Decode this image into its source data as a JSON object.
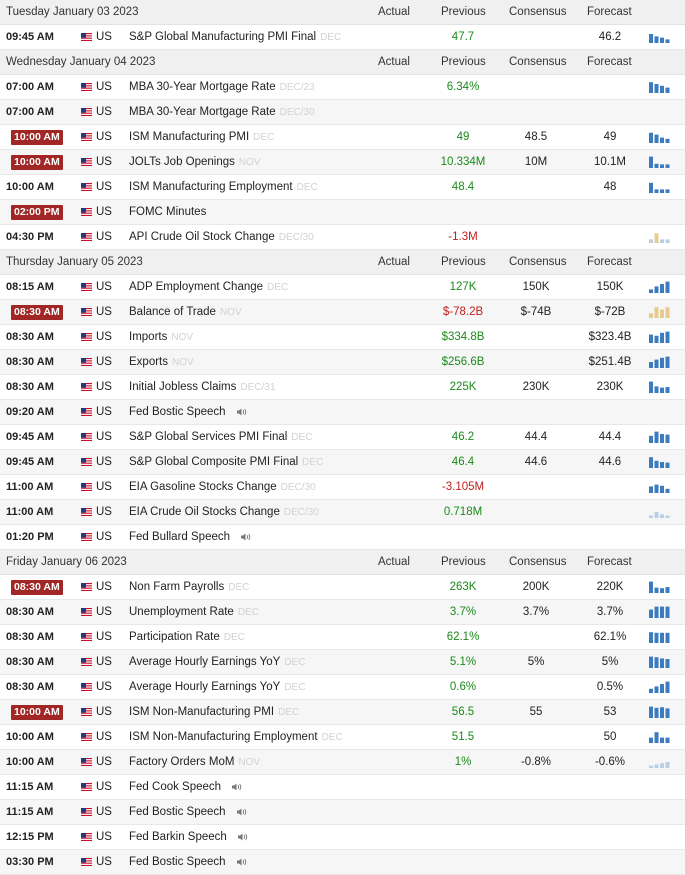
{
  "columns": {
    "actual": "Actual",
    "previous": "Previous",
    "consensus": "Consensus",
    "forecast": "Forecast"
  },
  "colors": {
    "highlight": "#a12727",
    "positive": "#1a8a1a",
    "negative": "#c21d1d",
    "spark_blue": "#3d7bbf",
    "spark_tan": "#e8c98e",
    "spark_light": "#b9cfe6"
  },
  "days": [
    {
      "label": "Tuesday January 03 2023",
      "events": [
        {
          "time": "09:45 AM",
          "highlight": false,
          "country": "US",
          "name": "S&P Global Manufacturing PMI Final",
          "period": "DEC",
          "speaker": false,
          "actual": "",
          "previous": "47.7",
          "previous_color": "pos",
          "consensus": "",
          "forecast": "46.2",
          "spark": "blue",
          "spark_values": [
            0.75,
            0.55,
            0.45,
            0.3
          ]
        }
      ]
    },
    {
      "label": "Wednesday January 04 2023",
      "events": [
        {
          "time": "07:00 AM",
          "highlight": false,
          "country": "US",
          "name": "MBA 30-Year Mortgage Rate",
          "period": "DEC/23",
          "speaker": false,
          "actual": "",
          "previous": "6.34%",
          "previous_color": "pos",
          "consensus": "",
          "forecast": "",
          "spark": "blue",
          "spark_values": [
            0.9,
            0.75,
            0.6,
            0.45
          ]
        },
        {
          "time": "07:00 AM",
          "highlight": false,
          "country": "US",
          "name": "MBA 30-Year Mortgage Rate",
          "period": "DEC/30",
          "speaker": false,
          "actual": "",
          "previous": "",
          "previous_color": "pos",
          "consensus": "",
          "forecast": "",
          "spark": "none",
          "spark_values": []
        },
        {
          "time": "10:00 AM",
          "highlight": true,
          "country": "US",
          "name": "ISM Manufacturing PMI",
          "period": "DEC",
          "speaker": false,
          "actual": "",
          "previous": "49",
          "previous_color": "pos",
          "consensus": "48.5",
          "forecast": "49",
          "spark": "blue",
          "spark_values": [
            0.85,
            0.7,
            0.45,
            0.35
          ]
        },
        {
          "time": "10:00 AM",
          "highlight": true,
          "country": "US",
          "name": "JOLTs Job Openings",
          "period": "NOV",
          "speaker": false,
          "actual": "",
          "previous": "10.334M",
          "previous_color": "pos",
          "consensus": "10M",
          "forecast": "10.1M",
          "spark": "blue",
          "spark_values": [
            0.95,
            0.35,
            0.3,
            0.3
          ]
        },
        {
          "time": "10:00 AM",
          "highlight": false,
          "country": "US",
          "name": "ISM Manufacturing Employment",
          "period": "DEC",
          "speaker": false,
          "actual": "",
          "previous": "48.4",
          "previous_color": "pos",
          "consensus": "",
          "forecast": "48",
          "spark": "blue",
          "spark_values": [
            0.85,
            0.3,
            0.3,
            0.3
          ]
        },
        {
          "time": "02:00 PM",
          "highlight": true,
          "country": "US",
          "name": "FOMC Minutes",
          "period": "",
          "speaker": false,
          "actual": "",
          "previous": "",
          "previous_color": "pos",
          "consensus": "",
          "forecast": "",
          "spark": "none",
          "spark_values": []
        },
        {
          "time": "04:30 PM",
          "highlight": false,
          "country": "US",
          "name": "API Crude Oil Stock Change",
          "period": "DEC/30",
          "speaker": false,
          "actual": "",
          "previous": "-1.3M",
          "previous_color": "neg",
          "consensus": "",
          "forecast": "",
          "spark": "mixed",
          "spark_values": [
            0.3,
            0.8,
            0.3,
            0.3
          ]
        }
      ]
    },
    {
      "label": "Thursday January 05 2023",
      "events": [
        {
          "time": "08:15 AM",
          "highlight": false,
          "country": "US",
          "name": "ADP Employment Change",
          "period": "DEC",
          "speaker": false,
          "actual": "",
          "previous": "127K",
          "previous_color": "pos",
          "consensus": "150K",
          "forecast": "150K",
          "spark": "blue",
          "spark_values": [
            0.3,
            0.55,
            0.75,
            0.95
          ]
        },
        {
          "time": "08:30 AM",
          "highlight": true,
          "country": "US",
          "name": "Balance of Trade",
          "period": "NOV",
          "speaker": false,
          "actual": "",
          "previous": "$-78.2B",
          "previous_color": "neg",
          "consensus": "$-74B",
          "forecast": "$-72B",
          "spark": "tan",
          "spark_values": [
            0.4,
            0.9,
            0.7,
            0.9
          ]
        },
        {
          "time": "08:30 AM",
          "highlight": false,
          "country": "US",
          "name": "Imports",
          "period": "NOV",
          "speaker": false,
          "actual": "",
          "previous": "$334.8B",
          "previous_color": "pos",
          "consensus": "",
          "forecast": "$323.4B",
          "spark": "blue",
          "spark_values": [
            0.7,
            0.6,
            0.85,
            0.95
          ]
        },
        {
          "time": "08:30 AM",
          "highlight": false,
          "country": "US",
          "name": "Exports",
          "period": "NOV",
          "speaker": false,
          "actual": "",
          "previous": "$256.6B",
          "previous_color": "pos",
          "consensus": "",
          "forecast": "$251.4B",
          "spark": "blue",
          "spark_values": [
            0.5,
            0.7,
            0.85,
            0.95
          ]
        },
        {
          "time": "08:30 AM",
          "highlight": false,
          "country": "US",
          "name": "Initial Jobless Claims",
          "period": "DEC/31",
          "speaker": false,
          "actual": "",
          "previous": "225K",
          "previous_color": "pos",
          "consensus": "230K",
          "forecast": "230K",
          "spark": "blue",
          "spark_values": [
            0.95,
            0.55,
            0.45,
            0.5
          ]
        },
        {
          "time": "09:20 AM",
          "highlight": false,
          "country": "US",
          "name": "Fed Bostic Speech",
          "period": "",
          "speaker": true,
          "actual": "",
          "previous": "",
          "previous_color": "pos",
          "consensus": "",
          "forecast": "",
          "spark": "none",
          "spark_values": []
        },
        {
          "time": "09:45 AM",
          "highlight": false,
          "country": "US",
          "name": "S&P Global Services PMI Final",
          "period": "DEC",
          "speaker": false,
          "actual": "",
          "previous": "46.2",
          "previous_color": "pos",
          "consensus": "44.4",
          "forecast": "44.4",
          "spark": "blue",
          "spark_values": [
            0.6,
            0.95,
            0.75,
            0.7
          ]
        },
        {
          "time": "09:45 AM",
          "highlight": false,
          "country": "US",
          "name": "S&P Global Composite PMI Final",
          "period": "DEC",
          "speaker": false,
          "actual": "",
          "previous": "46.4",
          "previous_color": "pos",
          "consensus": "44.6",
          "forecast": "44.6",
          "spark": "blue",
          "spark_values": [
            0.9,
            0.6,
            0.5,
            0.45
          ]
        },
        {
          "time": "11:00 AM",
          "highlight": false,
          "country": "US",
          "name": "EIA Gasoline Stocks Change",
          "period": "DEC/30",
          "speaker": false,
          "actual": "",
          "previous": "-3.105M",
          "previous_color": "neg",
          "consensus": "",
          "forecast": "",
          "spark": "blue",
          "spark_values": [
            0.55,
            0.7,
            0.6,
            0.35
          ]
        },
        {
          "time": "11:00 AM",
          "highlight": false,
          "country": "US",
          "name": "EIA Crude Oil Stocks Change",
          "period": "DEC/30",
          "speaker": false,
          "actual": "",
          "previous": "0.718M",
          "previous_color": "pos",
          "consensus": "",
          "forecast": "",
          "spark": "light",
          "spark_values": [
            0.2,
            0.5,
            0.3,
            0.2
          ]
        },
        {
          "time": "01:20 PM",
          "highlight": false,
          "country": "US",
          "name": "Fed Bullard Speech",
          "period": "",
          "speaker": true,
          "actual": "",
          "previous": "",
          "previous_color": "pos",
          "consensus": "",
          "forecast": "",
          "spark": "none",
          "spark_values": []
        }
      ]
    },
    {
      "label": "Friday January 06 2023",
      "events": [
        {
          "time": "08:30 AM",
          "highlight": true,
          "country": "US",
          "name": "Non Farm Payrolls",
          "period": "DEC",
          "speaker": false,
          "actual": "",
          "previous": "263K",
          "previous_color": "pos",
          "consensus": "200K",
          "forecast": "220K",
          "spark": "blue",
          "spark_values": [
            0.95,
            0.45,
            0.4,
            0.5
          ]
        },
        {
          "time": "08:30 AM",
          "highlight": false,
          "country": "US",
          "name": "Unemployment Rate",
          "period": "DEC",
          "speaker": false,
          "actual": "",
          "previous": "3.7%",
          "previous_color": "pos",
          "consensus": "3.7%",
          "forecast": "3.7%",
          "spark": "blue",
          "spark_values": [
            0.7,
            0.95,
            0.95,
            0.95
          ]
        },
        {
          "time": "08:30 AM",
          "highlight": false,
          "country": "US",
          "name": "Participation Rate",
          "period": "DEC",
          "speaker": false,
          "actual": "",
          "previous": "62.1%",
          "previous_color": "pos",
          "consensus": "",
          "forecast": "62.1%",
          "spark": "blue",
          "spark_values": [
            0.9,
            0.85,
            0.85,
            0.85
          ]
        },
        {
          "time": "08:30 AM",
          "highlight": false,
          "country": "US",
          "name": "Average Hourly Earnings YoY",
          "period": "DEC",
          "speaker": false,
          "actual": "",
          "previous": "5.1%",
          "previous_color": "pos",
          "consensus": "5%",
          "forecast": "5%",
          "spark": "blue",
          "spark_values": [
            0.95,
            0.9,
            0.8,
            0.75
          ]
        },
        {
          "time": "08:30 AM",
          "highlight": false,
          "country": "US",
          "name": "Average Hourly Earnings YoY",
          "period": "DEC",
          "speaker": false,
          "actual": "",
          "previous": "0.6%",
          "previous_color": "pos",
          "consensus": "",
          "forecast": "0.5%",
          "spark": "blue",
          "spark_values": [
            0.35,
            0.55,
            0.75,
            0.95
          ]
        },
        {
          "time": "10:00 AM",
          "highlight": true,
          "country": "US",
          "name": "ISM Non-Manufacturing PMI",
          "period": "DEC",
          "speaker": false,
          "actual": "",
          "previous": "56.5",
          "previous_color": "pos",
          "consensus": "55",
          "forecast": "53",
          "spark": "blue",
          "spark_values": [
            0.95,
            0.85,
            0.9,
            0.8
          ]
        },
        {
          "time": "10:00 AM",
          "highlight": false,
          "country": "US",
          "name": "ISM Non-Manufacturing Employment",
          "period": "DEC",
          "speaker": false,
          "actual": "",
          "previous": "51.5",
          "previous_color": "pos",
          "consensus": "",
          "forecast": "50",
          "spark": "blue",
          "spark_values": [
            0.45,
            0.9,
            0.45,
            0.45
          ]
        },
        {
          "time": "10:00 AM",
          "highlight": false,
          "country": "US",
          "name": "Factory Orders MoM",
          "period": "NOV",
          "speaker": false,
          "actual": "",
          "previous": "1%",
          "previous_color": "pos",
          "consensus": "-0.8%",
          "forecast": "-0.6%",
          "spark": "light",
          "spark_values": [
            0.2,
            0.3,
            0.4,
            0.5
          ]
        },
        {
          "time": "11:15 AM",
          "highlight": false,
          "country": "US",
          "name": "Fed Cook Speech",
          "period": "",
          "speaker": true,
          "actual": "",
          "previous": "",
          "previous_color": "pos",
          "consensus": "",
          "forecast": "",
          "spark": "none",
          "spark_values": []
        },
        {
          "time": "11:15 AM",
          "highlight": false,
          "country": "US",
          "name": "Fed Bostic Speech",
          "period": "",
          "speaker": true,
          "actual": "",
          "previous": "",
          "previous_color": "pos",
          "consensus": "",
          "forecast": "",
          "spark": "none",
          "spark_values": []
        },
        {
          "time": "12:15 PM",
          "highlight": false,
          "country": "US",
          "name": "Fed Barkin Speech",
          "period": "",
          "speaker": true,
          "actual": "",
          "previous": "",
          "previous_color": "pos",
          "consensus": "",
          "forecast": "",
          "spark": "none",
          "spark_values": []
        },
        {
          "time": "03:30 PM",
          "highlight": false,
          "country": "US",
          "name": "Fed Bostic Speech",
          "period": "",
          "speaker": true,
          "actual": "",
          "previous": "",
          "previous_color": "pos",
          "consensus": "",
          "forecast": "",
          "spark": "none",
          "spark_values": []
        }
      ]
    }
  ]
}
